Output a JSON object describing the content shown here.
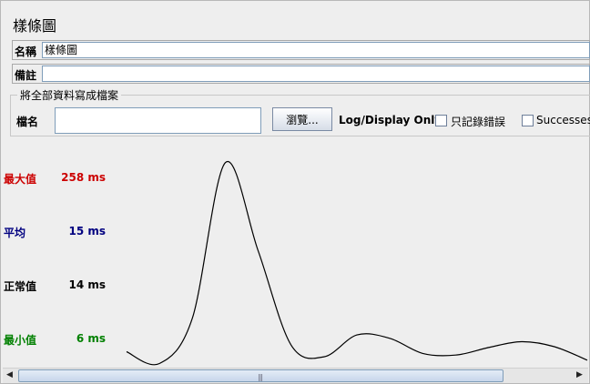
{
  "window": {
    "title": "樣條圖"
  },
  "form": {
    "name_label": "名稱",
    "name_value": "樣條圖",
    "comment_label": "備註",
    "comment_value": ""
  },
  "file_section": {
    "legend": "將全部資料寫成檔案",
    "file_label": "檔名",
    "file_value": "",
    "browse_label": "瀏覽...",
    "log_display_label": "Log/Display Only:",
    "errors_only_label": "只記錄錯誤",
    "errors_only_checked": false,
    "successes_label": "Successes",
    "successes_checked": false
  },
  "stats": {
    "max": {
      "label": "最大值",
      "value": "258 ms",
      "color": "#cc0000"
    },
    "average": {
      "label": "平均",
      "value": "15 ms",
      "color": "#000080"
    },
    "latest": {
      "label": "正常值",
      "value": "14 ms",
      "color": "#000000"
    },
    "min": {
      "label": "最小值",
      "value": "6 ms",
      "color": "#008000"
    }
  },
  "chart_data": {
    "type": "line",
    "xlabel": "",
    "ylabel": "",
    "series": [
      {
        "values": [
          20,
          6,
          60,
          245,
          140,
          28,
          14,
          40,
          36,
          18,
          16,
          25,
          32,
          26,
          10
        ]
      }
    ],
    "grid": false
  },
  "scrollbar": {
    "left_arrow": "◀",
    "right_arrow": "▶",
    "grip": "|||"
  }
}
